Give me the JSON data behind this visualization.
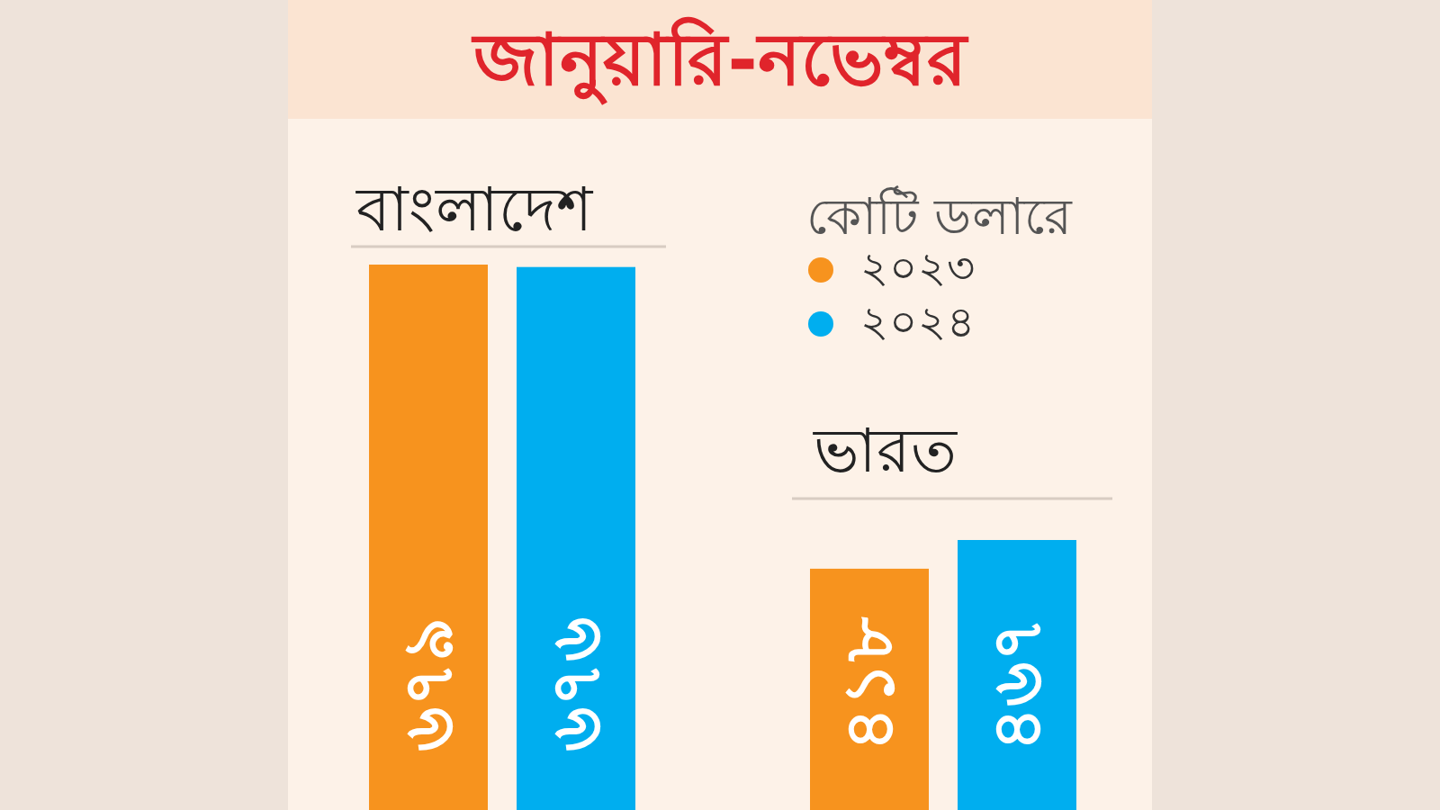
{
  "chart_data": [
    {
      "type": "bar",
      "title": "জানুয়ারি-নভেম্বর",
      "subtitle": "বাংলাদেশ",
      "categories": [
        null
      ],
      "legend": "right",
      "legend_title": "কোটি ডলারে",
      "series": [
        {
          "name": "২০২৩",
          "color": "#f7931e",
          "values": [
            679
          ],
          "value_labels": [
            "৬৭৯"
          ]
        },
        {
          "name": "২০২৪",
          "color": "#00aeef",
          "values": [
            676
          ],
          "value_labels": [
            "৬৭৬"
          ]
        }
      ]
    },
    {
      "type": "bar",
      "title": "ভারত",
      "categories": [
        null
      ],
      "series": [
        {
          "color": "#f7931e",
          "values": [
            418
          ],
          "value_labels": [
            "৪১৮"
          ]
        },
        {
          "color": "#00aeef",
          "values": [
            467
          ],
          "value_labels": [
            "৪৬৭"
          ]
        }
      ]
    }
  ]
}
